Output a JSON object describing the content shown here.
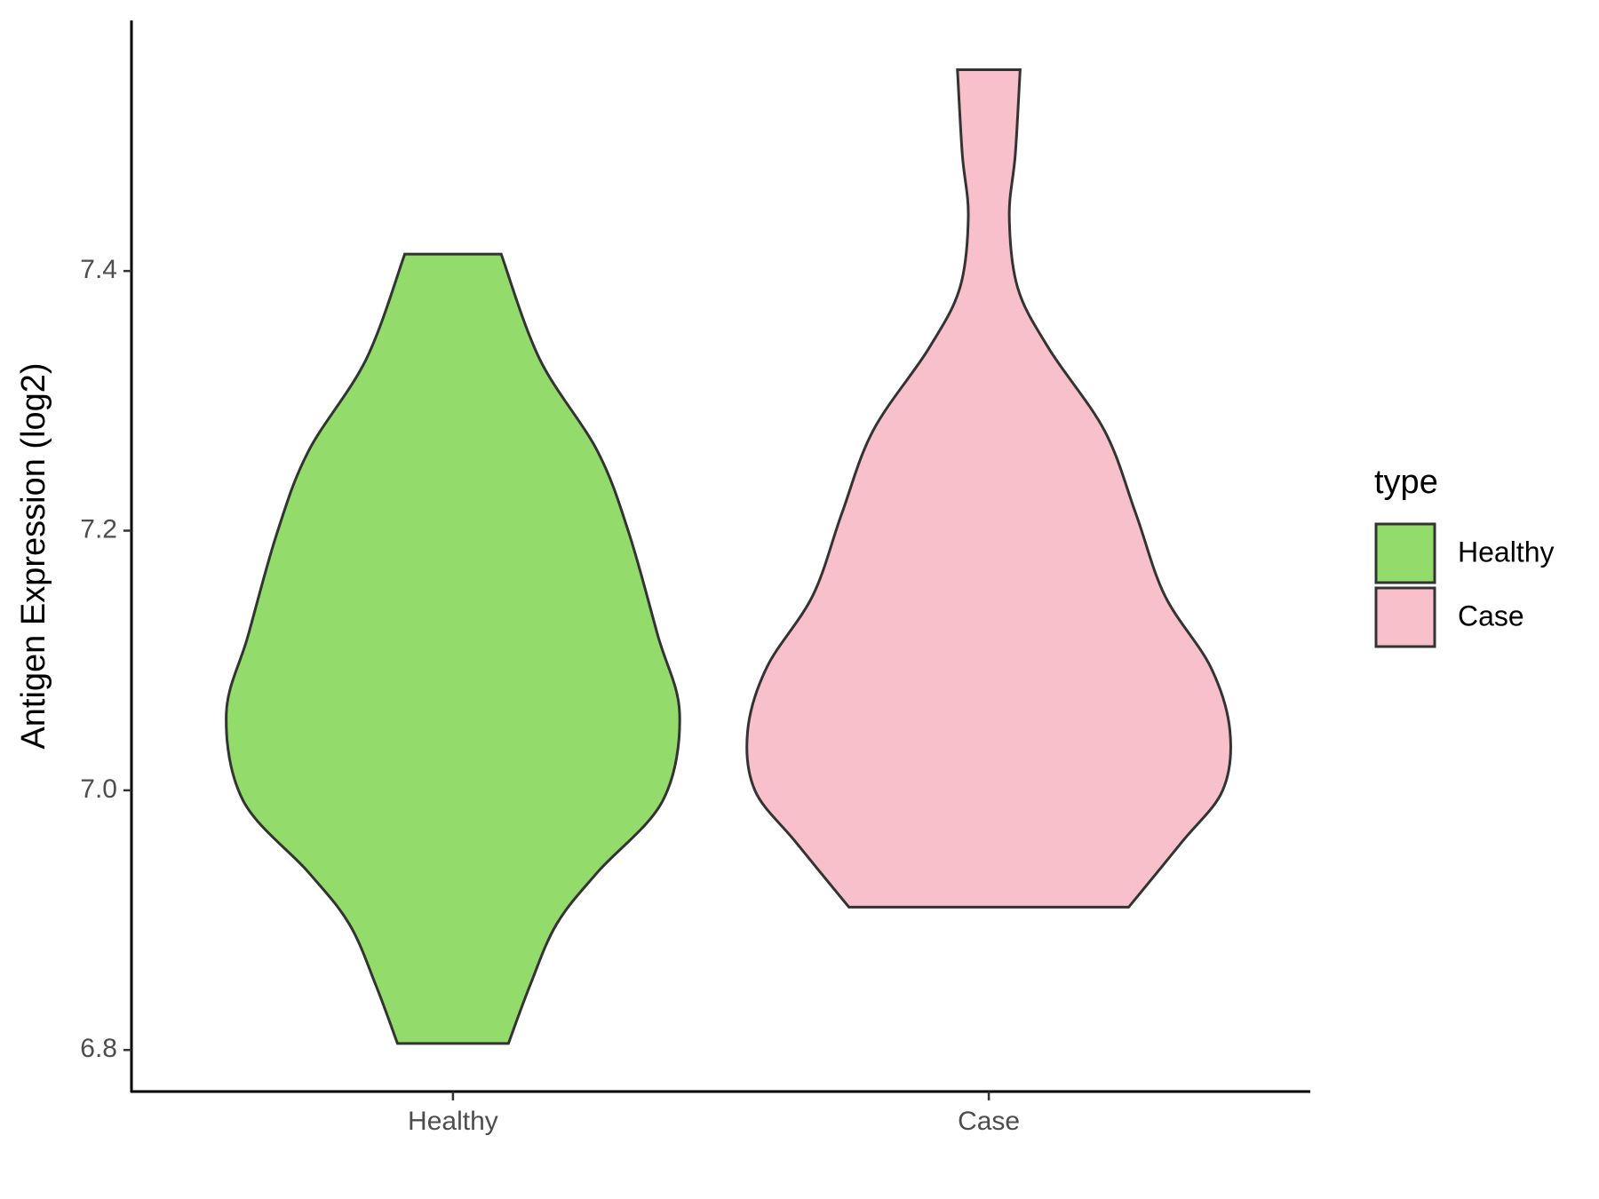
{
  "chart_data": {
    "type": "violin",
    "y_label": "Antigen Expression (log2)",
    "categories": [
      "Healthy",
      "Case"
    ],
    "ylim": [
      6.768,
      7.593
    ],
    "yticks": [
      {
        "value": 6.8,
        "label": "6.8"
      },
      {
        "value": 7.0,
        "label": "7.0"
      },
      {
        "value": 7.2,
        "label": "7.2"
      },
      {
        "value": 7.4,
        "label": "7.4"
      }
    ],
    "legend_title": "type",
    "legend_position": "right",
    "series": [
      {
        "name": "Healthy",
        "color": "#93DB6B",
        "y": [
          6.805,
          6.85,
          6.897,
          6.937,
          6.992,
          7.059,
          7.119,
          7.198,
          7.261,
          7.332,
          7.413
        ],
        "density": [
          0.23,
          0.32,
          0.43,
          0.6,
          0.87,
          0.94,
          0.85,
          0.73,
          0.6,
          0.36,
          0.2
        ]
      },
      {
        "name": "Case",
        "color": "#F8C0CB",
        "y": [
          6.91,
          6.96,
          7.0,
          7.046,
          7.095,
          7.15,
          7.213,
          7.277,
          7.34,
          7.387,
          7.442,
          7.49,
          7.555
        ],
        "density": [
          0.58,
          0.8,
          0.97,
          1.0,
          0.92,
          0.73,
          0.61,
          0.48,
          0.25,
          0.12,
          0.085,
          0.11,
          0.13
        ]
      }
    ]
  }
}
